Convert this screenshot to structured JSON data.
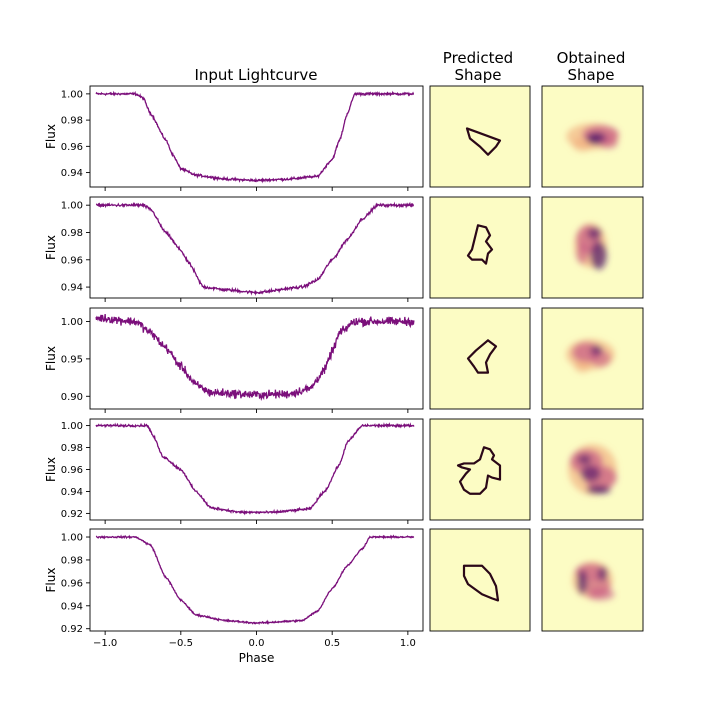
{
  "titles": {
    "lightcurve": "Input Lightcurve",
    "predicted": [
      "Predicted",
      "Shape"
    ],
    "obtained": [
      "Obtained",
      "Shape"
    ]
  },
  "colors": {
    "curve": "#7b0f7b",
    "panel_bg": "#fcfcc4",
    "shape_line": "#2b0818",
    "blob_light": "#f0a878",
    "blob_mid": "#c85a86",
    "blob_dark": "#4a1168"
  },
  "chart_data": {
    "type": "line",
    "xlabel": "Phase",
    "ylabel": "Flux",
    "xlim": [
      -1.1,
      1.1
    ],
    "xticks": [
      -1.0,
      -0.5,
      0.0,
      0.5,
      1.0
    ],
    "xtick_labels": [
      "−1.0",
      "−0.5",
      "0.0",
      "0.5",
      "1.0"
    ],
    "panels": [
      {
        "ylim": [
          0.929,
          1.006
        ],
        "yticks": [
          1.0,
          0.98,
          0.96,
          0.94
        ],
        "ytick_labels": [
          "1.00",
          "0.98",
          "0.96",
          "0.94"
        ],
        "noise": 0.0006,
        "points": [
          [
            -1.06,
            1.0
          ],
          [
            -0.8,
            1.0
          ],
          [
            -0.75,
            0.997
          ],
          [
            -0.7,
            0.985
          ],
          [
            -0.6,
            0.965
          ],
          [
            -0.55,
            0.953
          ],
          [
            -0.5,
            0.943
          ],
          [
            -0.4,
            0.938
          ],
          [
            -0.2,
            0.935
          ],
          [
            0.0,
            0.934
          ],
          [
            0.2,
            0.935
          ],
          [
            0.4,
            0.937
          ],
          [
            0.5,
            0.95
          ],
          [
            0.55,
            0.965
          ],
          [
            0.6,
            0.985
          ],
          [
            0.65,
            1.0
          ],
          [
            1.04,
            1.0
          ]
        ]
      },
      {
        "ylim": [
          0.932,
          1.006
        ],
        "yticks": [
          1.0,
          0.98,
          0.96,
          0.94
        ],
        "ytick_labels": [
          "1.00",
          "0.98",
          "0.96",
          "0.94"
        ],
        "noise": 0.0007,
        "points": [
          [
            -1.06,
            1.0
          ],
          [
            -0.75,
            1.0
          ],
          [
            -0.7,
            0.997
          ],
          [
            -0.6,
            0.98
          ],
          [
            -0.5,
            0.967
          ],
          [
            -0.45,
            0.958
          ],
          [
            -0.35,
            0.94
          ],
          [
            -0.2,
            0.938
          ],
          [
            0.0,
            0.936
          ],
          [
            0.3,
            0.94
          ],
          [
            0.4,
            0.945
          ],
          [
            0.5,
            0.96
          ],
          [
            0.6,
            0.975
          ],
          [
            0.7,
            0.99
          ],
          [
            0.8,
            1.0
          ],
          [
            1.04,
            1.0
          ]
        ]
      },
      {
        "ylim": [
          0.883,
          1.018
        ],
        "yticks": [
          1.0,
          0.95,
          0.9
        ],
        "ytick_labels": [
          "1.00",
          "0.95",
          "0.90"
        ],
        "noise": 0.004,
        "points": [
          [
            -1.06,
            1.005
          ],
          [
            -0.8,
            1.0
          ],
          [
            -0.7,
            0.985
          ],
          [
            -0.6,
            0.965
          ],
          [
            -0.5,
            0.94
          ],
          [
            -0.4,
            0.915
          ],
          [
            -0.3,
            0.905
          ],
          [
            0.0,
            0.902
          ],
          [
            0.2,
            0.903
          ],
          [
            0.35,
            0.91
          ],
          [
            0.45,
            0.935
          ],
          [
            0.5,
            0.96
          ],
          [
            0.55,
            0.985
          ],
          [
            0.65,
            1.0
          ],
          [
            1.04,
            1.0
          ]
        ]
      },
      {
        "ylim": [
          0.914,
          1.006
        ],
        "yticks": [
          1.0,
          0.98,
          0.96,
          0.94,
          0.92
        ],
        "ytick_labels": [
          "1.00",
          "0.98",
          "0.96",
          "0.94",
          "0.92"
        ],
        "noise": 0.0007,
        "points": [
          [
            -1.06,
            1.0
          ],
          [
            -0.72,
            1.0
          ],
          [
            -0.68,
            0.99
          ],
          [
            -0.62,
            0.972
          ],
          [
            -0.5,
            0.96
          ],
          [
            -0.4,
            0.94
          ],
          [
            -0.3,
            0.925
          ],
          [
            -0.1,
            0.921
          ],
          [
            0.1,
            0.921
          ],
          [
            0.35,
            0.924
          ],
          [
            0.45,
            0.94
          ],
          [
            0.55,
            0.965
          ],
          [
            0.6,
            0.985
          ],
          [
            0.7,
            1.0
          ],
          [
            1.04,
            1.0
          ]
        ]
      },
      {
        "ylim": [
          0.918,
          1.007
        ],
        "yticks": [
          1.0,
          0.98,
          0.96,
          0.94,
          0.92
        ],
        "ytick_labels": [
          "1.00",
          "0.98",
          "0.96",
          "0.94",
          "0.92"
        ],
        "noise": 0.0005,
        "points": [
          [
            -1.06,
            1.0
          ],
          [
            -0.8,
            1.0
          ],
          [
            -0.7,
            0.993
          ],
          [
            -0.6,
            0.965
          ],
          [
            -0.5,
            0.945
          ],
          [
            -0.4,
            0.932
          ],
          [
            -0.2,
            0.927
          ],
          [
            0.0,
            0.925
          ],
          [
            0.3,
            0.927
          ],
          [
            0.4,
            0.935
          ],
          [
            0.5,
            0.955
          ],
          [
            0.6,
            0.975
          ],
          [
            0.7,
            0.99
          ],
          [
            0.75,
            1.0
          ],
          [
            1.04,
            1.0
          ]
        ]
      }
    ]
  }
}
